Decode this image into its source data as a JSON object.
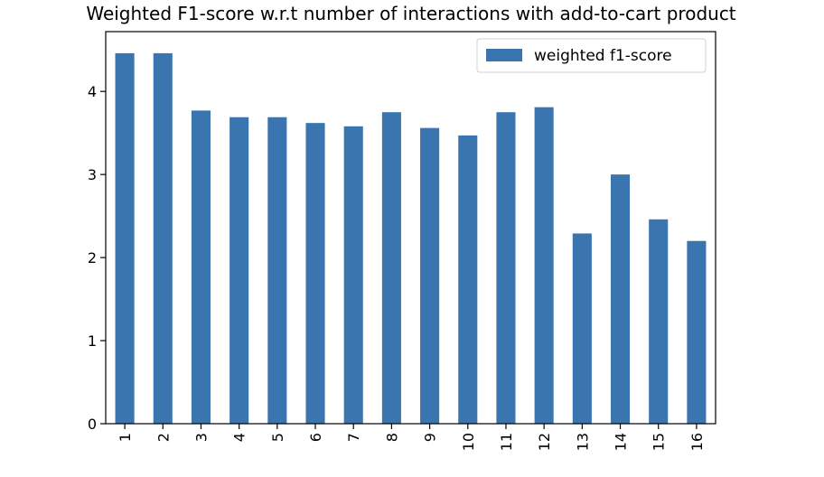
{
  "chart_data": {
    "type": "bar",
    "title": "Weighted F1-score w.r.t number of interactions with add-to-cart product",
    "xlabel": "",
    "ylabel": "",
    "categories": [
      "1",
      "2",
      "3",
      "4",
      "5",
      "6",
      "7",
      "8",
      "9",
      "10",
      "11",
      "12",
      "13",
      "14",
      "15",
      "16"
    ],
    "series": [
      {
        "name": "weighted f1-score",
        "color": "#3a75b0",
        "values": [
          4.46,
          4.46,
          3.77,
          3.69,
          3.69,
          3.62,
          3.58,
          3.75,
          3.56,
          3.47,
          3.75,
          3.81,
          2.29,
          3.0,
          2.46,
          2.2
        ]
      }
    ],
    "ylim": [
      0,
      4.72
    ],
    "yticks": [
      0,
      1,
      2,
      3,
      4
    ],
    "grid": false,
    "legend_position": "top-right"
  }
}
